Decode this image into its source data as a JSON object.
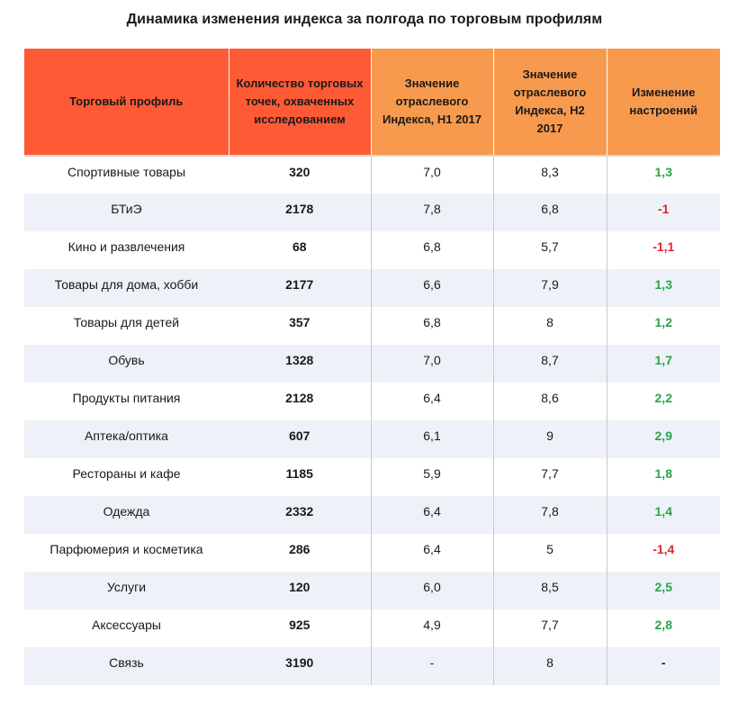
{
  "title": "Динамика изменения индекса за полгода по торговым профилям",
  "header": {
    "profile": "Торговый профиль",
    "count": "Количество торговых точек, охваченных исследованием",
    "h1": "Значение отраслевого Индекса, H1 2017",
    "h2": "Значение отраслевого Индекса, H2 2017",
    "change": "Изменение настроений"
  },
  "colors": {
    "header_red": "#ff5a36",
    "header_orange": "#f89a4e",
    "positive": "#2ca34a",
    "negative": "#e0262b",
    "row_stripe": "#eef1f7"
  },
  "rows": [
    {
      "profile": "Спортивные товары",
      "count": "320",
      "h1": "7,0",
      "h2": "8,3",
      "change": "1,3",
      "trend": "pos"
    },
    {
      "profile": "БТиЭ",
      "count": "2178",
      "h1": "7,8",
      "h2": "6,8",
      "change": "-1",
      "trend": "neg"
    },
    {
      "profile": "Кино и развлечения",
      "count": "68",
      "h1": "6,8",
      "h2": "5,7",
      "change": "-1,1",
      "trend": "neg"
    },
    {
      "profile": "Товары для дома, хобби",
      "count": "2177",
      "h1": "6,6",
      "h2": "7,9",
      "change": "1,3",
      "trend": "pos"
    },
    {
      "profile": "Товары для детей",
      "count": "357",
      "h1": "6,8",
      "h2": "8",
      "change": "1,2",
      "trend": "pos"
    },
    {
      "profile": "Обувь",
      "count": "1328",
      "h1": "7,0",
      "h2": "8,7",
      "change": "1,7",
      "trend": "pos"
    },
    {
      "profile": "Продукты питания",
      "count": "2128",
      "h1": "6,4",
      "h2": "8,6",
      "change": "2,2",
      "trend": "pos"
    },
    {
      "profile": "Аптека/оптика",
      "count": "607",
      "h1": "6,1",
      "h2": "9",
      "change": "2,9",
      "trend": "pos"
    },
    {
      "profile": "Рестораны и кафе",
      "count": "1185",
      "h1": "5,9",
      "h2": "7,7",
      "change": "1,8",
      "trend": "pos"
    },
    {
      "profile": "Одежда",
      "count": "2332",
      "h1": "6,4",
      "h2": "7,8",
      "change": "1,4",
      "trend": "pos"
    },
    {
      "profile": "Парфюмерия и косметика",
      "count": "286",
      "h1": "6,4",
      "h2": "5",
      "change": "-1,4",
      "trend": "neg"
    },
    {
      "profile": "Услуги",
      "count": "120",
      "h1": "6,0",
      "h2": "8,5",
      "change": "2,5",
      "trend": "pos"
    },
    {
      "profile": "Аксессуары",
      "count": "925",
      "h1": "4,9",
      "h2": "7,7",
      "change": "2,8",
      "trend": "pos"
    },
    {
      "profile": "Связь",
      "count": "3190",
      "h1": "-",
      "h2": "8",
      "change": "-",
      "trend": "neu"
    }
  ]
}
